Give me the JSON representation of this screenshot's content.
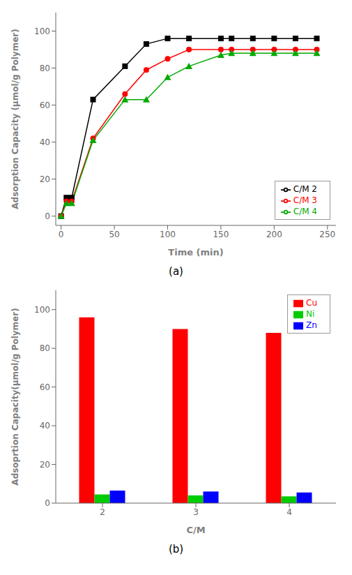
{
  "chart_data": [
    {
      "type": "line",
      "x_label": "Time (min)",
      "y_label": "Adsorption Capacity (μmol/g Polymer)",
      "x": [
        0,
        5,
        10,
        30,
        60,
        80,
        100,
        120,
        150,
        160,
        180,
        200,
        220,
        240
      ],
      "series": [
        {
          "name": "C/M 2",
          "color": "#000000",
          "marker": "square",
          "values": [
            0,
            10,
            10,
            63,
            81,
            93,
            96,
            96,
            96,
            96,
            96,
            96,
            96,
            96
          ]
        },
        {
          "name": "C/M 3",
          "color": "#ff0000",
          "marker": "circle",
          "values": [
            0,
            8,
            8,
            42,
            66,
            79,
            85,
            90,
            90,
            90,
            90,
            90,
            90,
            90
          ]
        },
        {
          "name": "C/M 4",
          "color": "#00aa00",
          "marker": "triangle",
          "values": [
            0,
            7,
            7,
            41,
            63,
            63,
            75,
            81,
            87,
            88,
            88,
            88,
            88,
            88
          ]
        }
      ],
      "xlim": [
        -5,
        258
      ],
      "ylim": [
        -5,
        110
      ],
      "xticks": [
        0,
        50,
        100,
        150,
        200,
        250
      ],
      "yticks": [
        0,
        20,
        40,
        60,
        80,
        100
      ],
      "grid": false,
      "legend": "lower right",
      "annotation": "(a)"
    },
    {
      "type": "bar",
      "x_label": "C/M",
      "y_label": "Adsoprtion Capacity(μmol/g Polymer)",
      "categories": [
        "2",
        "3",
        "4"
      ],
      "series": [
        {
          "name": "Cu",
          "color": "#ff0000",
          "values": [
            96,
            90,
            88
          ]
        },
        {
          "name": "Ni",
          "color": "#00cc00",
          "values": [
            4.5,
            4.0,
            3.5
          ]
        },
        {
          "name": "Zn",
          "color": "#0000ff",
          "values": [
            6.5,
            6.0,
            5.5
          ]
        }
      ],
      "ylim": [
        0,
        110
      ],
      "yticks": [
        0,
        20,
        40,
        60,
        80,
        100
      ],
      "grid": false,
      "legend": "upper right",
      "annotation": "(b)"
    }
  ]
}
